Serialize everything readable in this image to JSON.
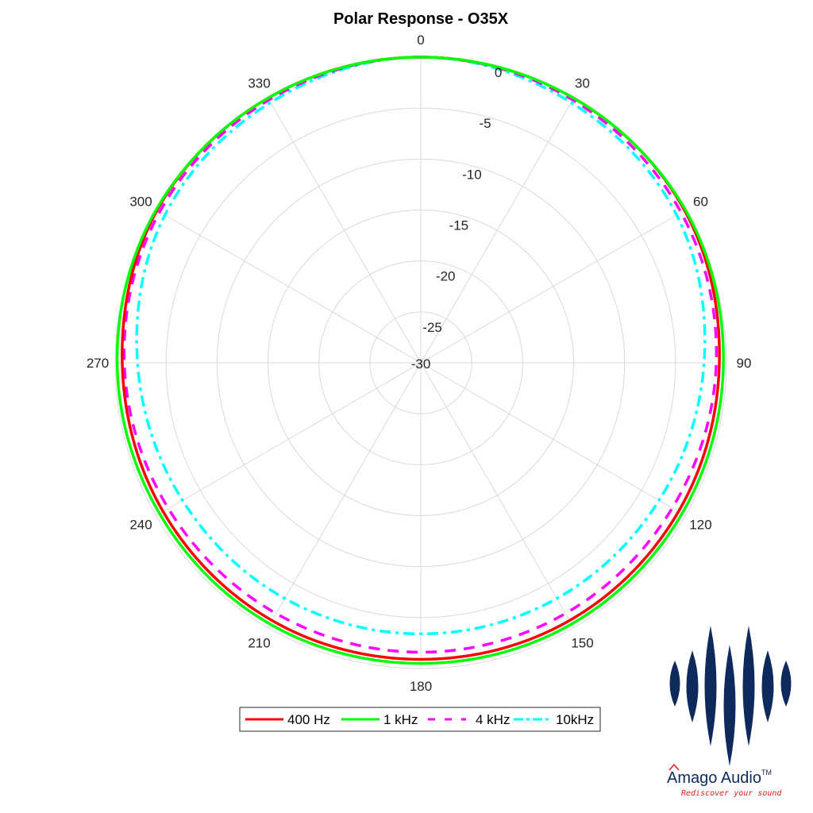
{
  "chart_data": {
    "type": "polar-line",
    "title": "Polar Response - O35X",
    "theta_zero_location": "top",
    "theta_direction": "clockwise",
    "theta_ticks": [
      0,
      30,
      60,
      90,
      120,
      150,
      180,
      210,
      240,
      270,
      300,
      330
    ],
    "r_ticks": [
      0,
      -5,
      -10,
      -15,
      -20,
      -25,
      -30
    ],
    "r_range": [
      -30,
      0
    ],
    "r_unit": "dB",
    "grid": true,
    "legend_position": "bottom",
    "angles": [
      0,
      30,
      60,
      90,
      120,
      150,
      180,
      210,
      240,
      270,
      300,
      330
    ],
    "series": [
      {
        "name": "400 Hz",
        "color": "#ff0000",
        "style": "solid",
        "values": [
          0,
          0,
          -0.1,
          -0.7,
          -0.8,
          -0.8,
          -0.9,
          -0.8,
          -0.8,
          -0.7,
          -0.1,
          0
        ]
      },
      {
        "name": "1 kHz",
        "color": "#00ff00",
        "style": "solid",
        "values": [
          0,
          0,
          0,
          -0.3,
          -0.4,
          -0.4,
          -0.5,
          -0.4,
          -0.4,
          -0.2,
          0,
          0
        ]
      },
      {
        "name": "4 kHz",
        "color": "#ff00ff",
        "style": "dashed",
        "values": [
          0,
          -0.2,
          -0.5,
          -1.0,
          -1.5,
          -1.6,
          -1.6,
          -1.6,
          -1.4,
          -0.9,
          -0.4,
          -0.2
        ]
      },
      {
        "name": "10kHz",
        "color": "#00ffff",
        "style": "dashdot",
        "values": [
          0,
          -0.5,
          -1.0,
          -2.2,
          -3.0,
          -3.3,
          -3.4,
          -3.3,
          -3.0,
          -2.2,
          -1.0,
          -0.5
        ]
      }
    ]
  },
  "logo": {
    "brand": "Amago Audio",
    "trademark": "TM",
    "tagline": "Rediscover your sound",
    "color": "#0e2a5c",
    "tagline_color": "#e02020"
  }
}
